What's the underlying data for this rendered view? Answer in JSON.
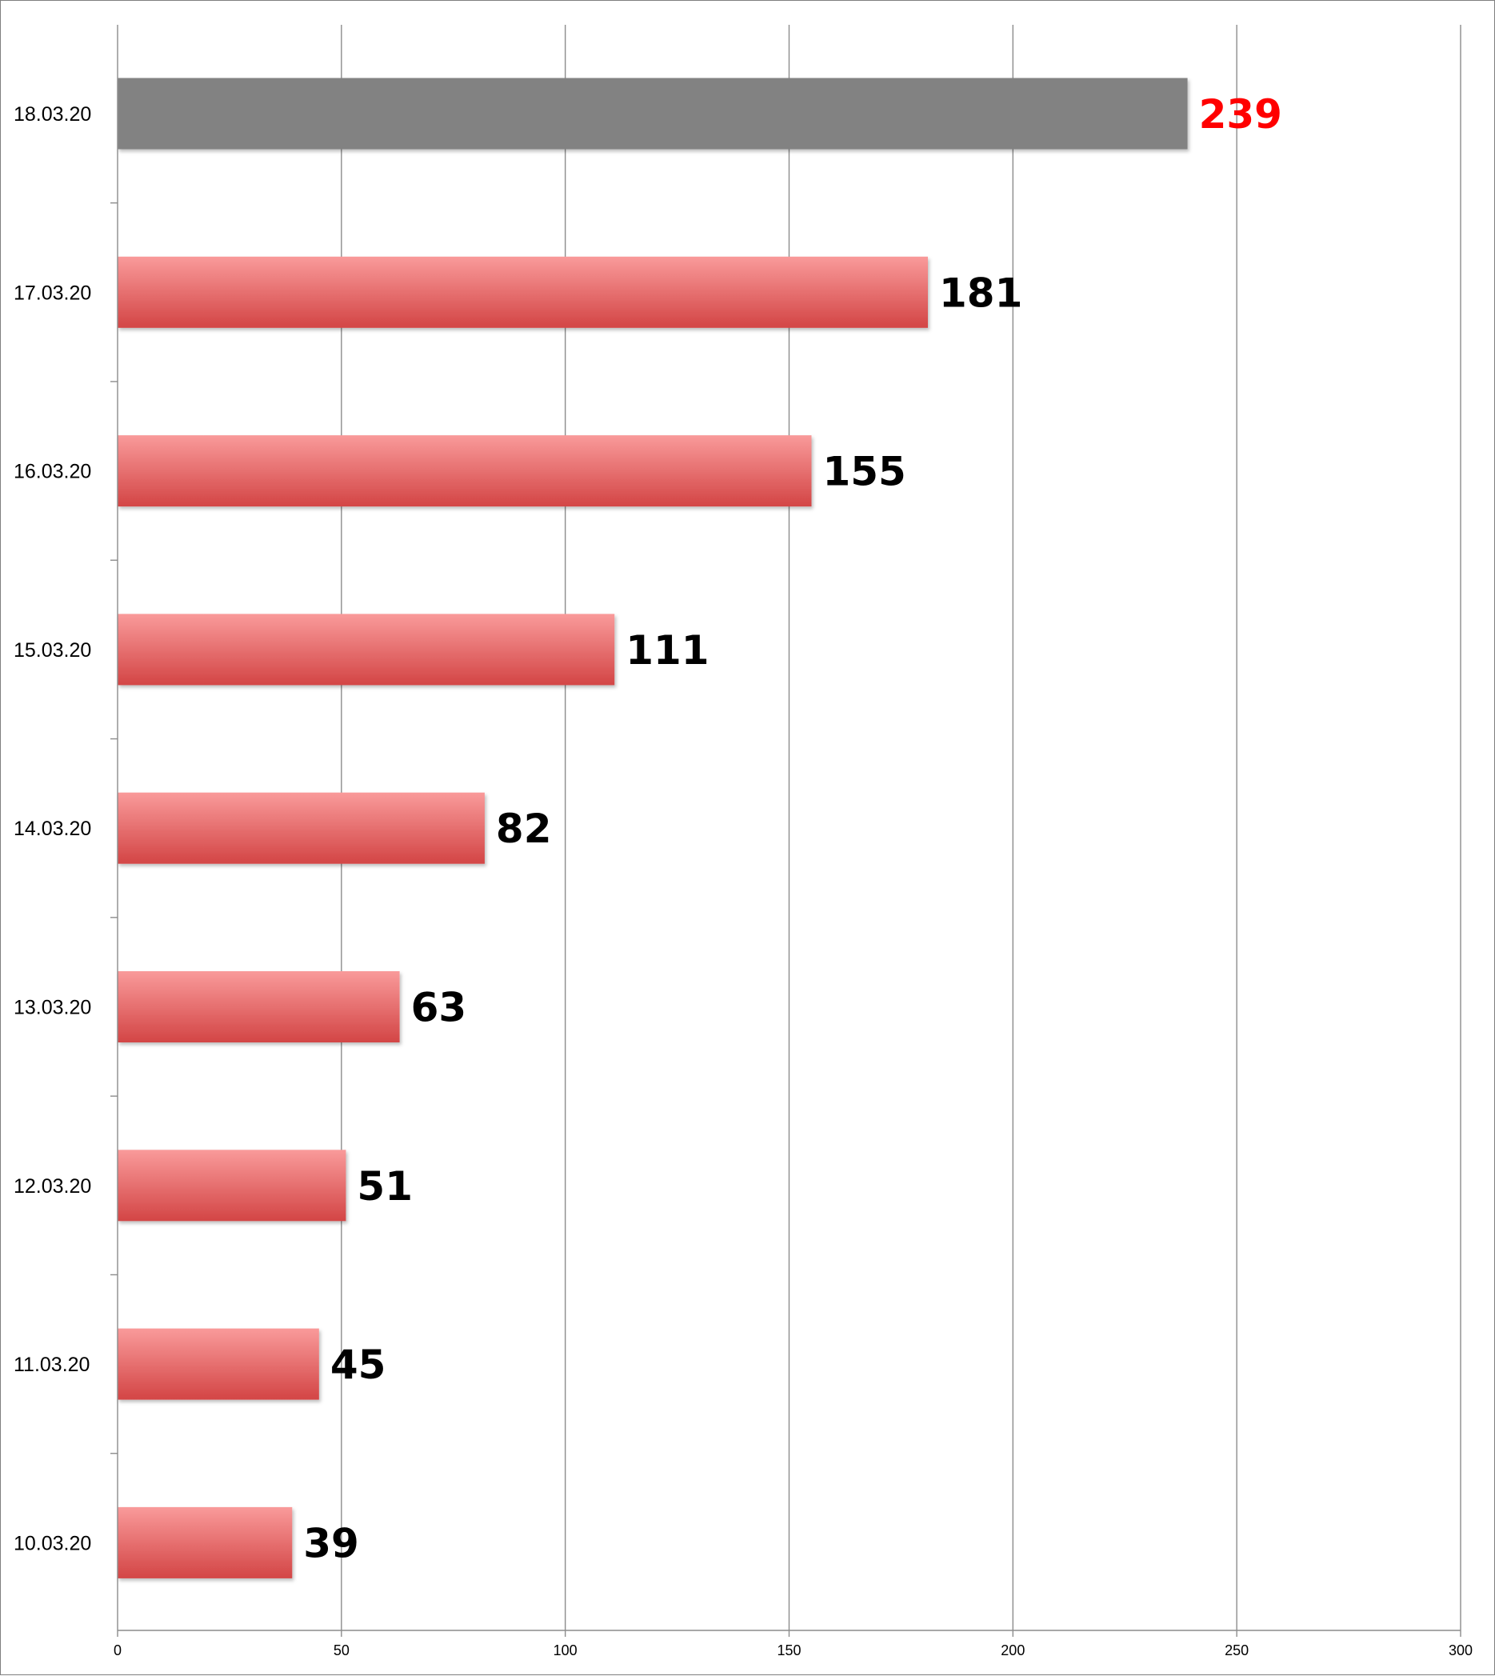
{
  "chart_data": {
    "type": "bar",
    "orientation": "horizontal",
    "categories": [
      "18.03.20",
      "17.03.20",
      "16.03.20",
      "15.03.20",
      "14.03.20",
      "13.03.20",
      "12.03.20",
      "11.03.20",
      "10.03.20"
    ],
    "values": [
      239,
      181,
      155,
      111,
      82,
      63,
      51,
      45,
      39
    ],
    "data_labels": [
      "239",
      "181",
      "155",
      "111",
      "82",
      "63",
      "51",
      "45",
      "39"
    ],
    "xlim": [
      0,
      300
    ],
    "x_ticks": [
      0,
      50,
      100,
      150,
      200,
      250,
      300
    ],
    "x_tick_labels": [
      "0",
      "50",
      "100",
      "150",
      "200",
      "250",
      "300"
    ],
    "grid": "vertical",
    "legend": "none",
    "title": "",
    "xlabel": "",
    "ylabel": "",
    "colors": {
      "highlight_bar": "#828282",
      "bar_top": "#f99a9a",
      "bar_bottom": "#d34545",
      "highlight_label": "#ff0000",
      "label": "#000000"
    },
    "highlighted_category": "18.03.20"
  }
}
